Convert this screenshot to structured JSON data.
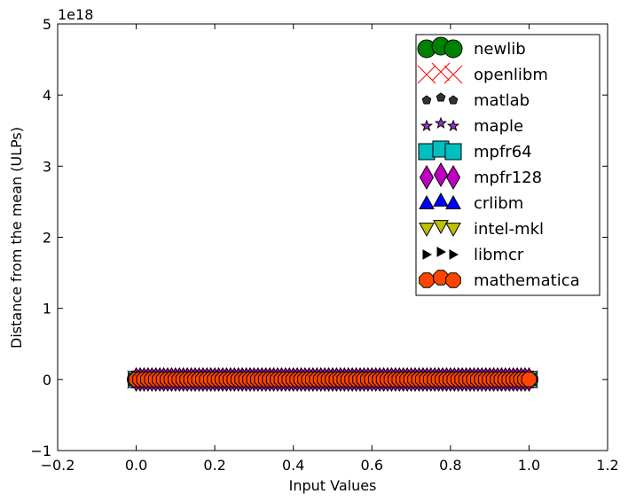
{
  "chart_data": {
    "type": "scatter",
    "title": "",
    "xlabel": "Input Values",
    "ylabel": "Distance from the mean (ULPs)",
    "offset_text": "1e18",
    "xlim": [
      -0.2,
      1.2
    ],
    "ylim": [
      -1,
      5
    ],
    "xticks": [
      "−0.2",
      "0.0",
      "0.2",
      "0.4",
      "0.6",
      "0.8",
      "1.0",
      "1.2"
    ],
    "yticks": [
      "−1",
      "0",
      "1",
      "2",
      "3",
      "4",
      "5"
    ],
    "grid": false,
    "legend_position": "top-right",
    "x_range": [
      0.0,
      1.0
    ],
    "x_count": 101,
    "series": [
      {
        "name": "newlib",
        "marker": "circle",
        "color": "#008000",
        "y_value": 0
      },
      {
        "name": "openlibm",
        "marker": "x",
        "color": "#ff0000",
        "y_value": 0
      },
      {
        "name": "matlab",
        "marker": "pentagon",
        "color": "#333333",
        "y_value": 0
      },
      {
        "name": "maple",
        "marker": "star",
        "color": "#9932cc",
        "y_value": 0
      },
      {
        "name": "mpfr64",
        "marker": "square",
        "color": "#00bfbf",
        "y_value": 0
      },
      {
        "name": "mpfr128",
        "marker": "diamond",
        "color": "#bf00bf",
        "y_value": 0
      },
      {
        "name": "crlibm",
        "marker": "triangle-up",
        "color": "#0000ff",
        "y_value": 0
      },
      {
        "name": "intel-mkl",
        "marker": "triangle-down",
        "color": "#bfbf00",
        "y_value": 0
      },
      {
        "name": "libmcr",
        "marker": "triangle-right",
        "color": "#000000",
        "y_value": 0
      },
      {
        "name": "mathematica",
        "marker": "octagon",
        "color": "#ff4500",
        "y_value": 0
      }
    ]
  }
}
